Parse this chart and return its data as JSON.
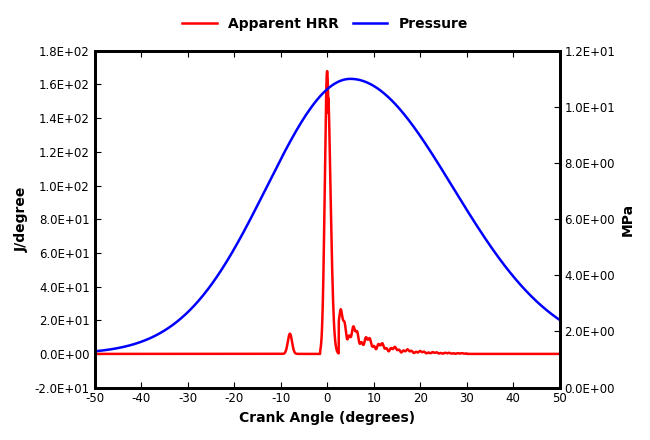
{
  "xlabel": "Crank Angle (degrees)",
  "ylabel_left": "J/degree",
  "ylabel_right": "MPa",
  "xlim": [
    -50,
    50
  ],
  "ylim_left": [
    -20,
    180
  ],
  "ylim_right": [
    0,
    12
  ],
  "yticks_left": [
    -20,
    0,
    20,
    40,
    60,
    80,
    100,
    120,
    140,
    160,
    180
  ],
  "ytick_labels_left": [
    "-2.0E+01",
    "0.0E+00",
    "2.0E+01",
    "4.0E+01",
    "6.0E+01",
    "8.0E+01",
    "1.0E+02",
    "1.2E+02",
    "1.4E+02",
    "1.6E+02",
    "1.8E+02"
  ],
  "yticks_right": [
    0,
    2,
    4,
    6,
    8,
    10,
    12
  ],
  "ytick_labels_right": [
    "0.0E+00",
    "2.0E+00",
    "4.0E+00",
    "6.0E+00",
    "8.0E+00",
    "1.0E+01",
    "1.2E+01"
  ],
  "xticks": [
    -50,
    -40,
    -30,
    -20,
    -10,
    0,
    10,
    20,
    30,
    40,
    50
  ],
  "legend_labels": [
    "Apparent HRR",
    "Pressure"
  ],
  "line_hrr_color": "#ff0000",
  "line_pressure_color": "#0000ff",
  "line_width": 1.8,
  "background_color": "#ffffff",
  "figsize": [
    6.5,
    4.4
  ],
  "dpi": 100
}
